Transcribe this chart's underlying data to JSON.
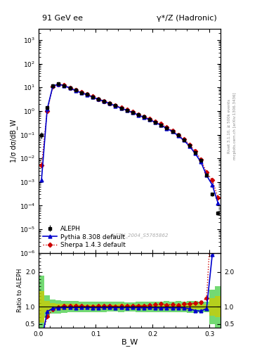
{
  "title_left": "91 GeV ee",
  "title_right": "γ*/Z (Hadronic)",
  "ylabel_main": "1/σ dσ/dB_W",
  "ylabel_ratio": "Ratio to ALEPH",
  "xlabel": "B_W",
  "right_label_top": "Rivet 3.1.10, ≥ 500k events",
  "right_label_mid": "mcplots.cern.ch [arXiv:1306.3436]",
  "watermark": "ALEPH_2004_S5765862",
  "ylim_main": [
    1e-06,
    3000.0
  ],
  "ylim_ratio": [
    0.4,
    2.55
  ],
  "xlim": [
    0.0,
    0.32
  ],
  "xticks": [
    0.0,
    0.1,
    0.2,
    0.3
  ],
  "bw_data": [
    0.005,
    0.015,
    0.025,
    0.035,
    0.045,
    0.055,
    0.065,
    0.075,
    0.085,
    0.095,
    0.105,
    0.115,
    0.125,
    0.135,
    0.145,
    0.155,
    0.165,
    0.175,
    0.185,
    0.195,
    0.205,
    0.215,
    0.225,
    0.235,
    0.245,
    0.255,
    0.265,
    0.275,
    0.285,
    0.295,
    0.305,
    0.315
  ],
  "aleph_y": [
    0.1,
    1.4,
    12.0,
    14.0,
    12.0,
    9.5,
    7.5,
    6.0,
    5.0,
    4.0,
    3.2,
    2.6,
    2.1,
    1.7,
    1.35,
    1.1,
    0.88,
    0.7,
    0.56,
    0.44,
    0.34,
    0.26,
    0.19,
    0.14,
    0.095,
    0.06,
    0.035,
    0.018,
    0.008,
    0.002,
    0.0003,
    5e-05
  ],
  "aleph_yerr_lo": [
    0.03,
    0.15,
    0.8,
    0.9,
    0.7,
    0.5,
    0.4,
    0.3,
    0.25,
    0.2,
    0.16,
    0.13,
    0.1,
    0.08,
    0.07,
    0.05,
    0.04,
    0.035,
    0.028,
    0.022,
    0.017,
    0.013,
    0.01,
    0.007,
    0.005,
    0.003,
    0.002,
    0.001,
    0.0004,
    0.0001,
    5e-05,
    1e-05
  ],
  "aleph_yerr_hi": [
    0.03,
    0.15,
    0.8,
    0.9,
    0.7,
    0.5,
    0.4,
    0.3,
    0.25,
    0.2,
    0.16,
    0.13,
    0.1,
    0.08,
    0.07,
    0.05,
    0.04,
    0.035,
    0.028,
    0.022,
    0.017,
    0.013,
    0.01,
    0.007,
    0.005,
    0.003,
    0.002,
    0.001,
    0.0004,
    0.0001,
    5e-05,
    1e-05
  ],
  "pythia_y": [
    0.0012,
    1.2,
    11.5,
    13.5,
    11.8,
    9.3,
    7.3,
    5.9,
    4.9,
    3.9,
    3.1,
    2.55,
    2.05,
    1.65,
    1.32,
    1.07,
    0.86,
    0.68,
    0.54,
    0.43,
    0.33,
    0.25,
    0.185,
    0.135,
    0.092,
    0.058,
    0.033,
    0.016,
    0.007,
    0.0019,
    0.00075,
    0.00013
  ],
  "sherpa_y": [
    0.005,
    1.0,
    11.0,
    13.8,
    12.2,
    9.7,
    7.7,
    6.1,
    5.05,
    4.05,
    3.25,
    2.65,
    2.15,
    1.72,
    1.38,
    1.12,
    0.9,
    0.72,
    0.57,
    0.46,
    0.36,
    0.28,
    0.2,
    0.15,
    0.1,
    0.065,
    0.038,
    0.02,
    0.009,
    0.0025,
    0.0012,
    0.00022
  ],
  "color_aleph": "#000000",
  "color_pythia": "#0000cc",
  "color_sherpa": "#cc0000",
  "legend_labels": [
    "ALEPH",
    "Pythia 8.308 default",
    "Sherpa 1.4.3 default"
  ],
  "bin_width": 0.01
}
